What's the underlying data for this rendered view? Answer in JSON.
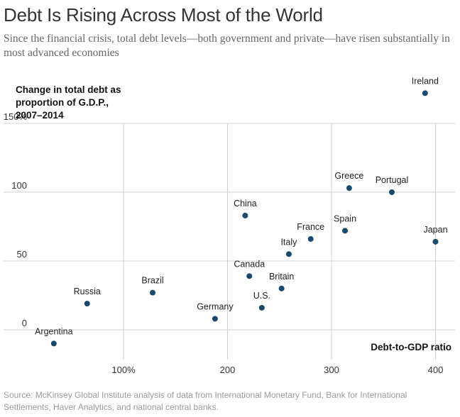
{
  "title": "Debt Is Rising Across Most of the World",
  "subtitle": "Since the financial crisis, total debt levels—both government and private—have risen substantially in most advanced economies",
  "source": "Source: McKinsey Global Institute analysis of data from International Monetary Fund, Bank for International Settlements, Haver Analytics, and national central banks.",
  "chart_data": {
    "type": "scatter",
    "xlabel": "Debt-to-GDP ratio",
    "ylabel": "Change in total debt as proportion of G.D.P., 2007–2014",
    "ylabel_lines": [
      "Change in total debt as",
      "proportion of G.D.P.,",
      "2007–2014"
    ],
    "xlim": [
      0,
      420
    ],
    "ylim": [
      -15,
      180
    ],
    "x_ticks": [
      100,
      200,
      300,
      400
    ],
    "x_tick_labels": [
      "100%",
      "200",
      "300",
      "400"
    ],
    "y_ticks": [
      0,
      50,
      100,
      150
    ],
    "y_tick_labels": [
      "0",
      "50",
      "100",
      "150%"
    ],
    "grid": true,
    "point_color": "#1a4a6b",
    "points": [
      {
        "label": "Argentina",
        "x": 33,
        "y": -10
      },
      {
        "label": "Russia",
        "x": 65,
        "y": 19
      },
      {
        "label": "Brazil",
        "x": 128,
        "y": 27
      },
      {
        "label": "Germany",
        "x": 188,
        "y": 8
      },
      {
        "label": "China",
        "x": 217,
        "y": 83
      },
      {
        "label": "Canada",
        "x": 221,
        "y": 39
      },
      {
        "label": "U.S.",
        "x": 233,
        "y": 16
      },
      {
        "label": "Britain",
        "x": 252,
        "y": 30
      },
      {
        "label": "Italy",
        "x": 259,
        "y": 55
      },
      {
        "label": "France",
        "x": 280,
        "y": 66
      },
      {
        "label": "Spain",
        "x": 313,
        "y": 72
      },
      {
        "label": "Greece",
        "x": 317,
        "y": 103
      },
      {
        "label": "Portugal",
        "x": 358,
        "y": 100
      },
      {
        "label": "Ireland",
        "x": 390,
        "y": 172
      },
      {
        "label": "Japan",
        "x": 400,
        "y": 64
      }
    ]
  }
}
